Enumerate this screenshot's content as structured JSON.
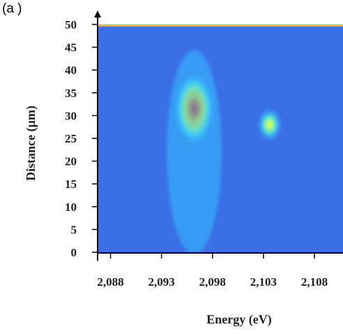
{
  "panel_label": "(a )",
  "chart_data": {
    "type": "heatmap",
    "xlabel": "Energy (eV)",
    "ylabel": "Distance (µm)",
    "xlim": [
      2.0868,
      2.1108
    ],
    "ylim": [
      0,
      50
    ],
    "x_ticks": [
      {
        "value": 2.088,
        "label": "2,088"
      },
      {
        "value": 2.093,
        "label": "2,093"
      },
      {
        "value": 2.098,
        "label": "2,098"
      },
      {
        "value": 2.103,
        "label": "2,103"
      },
      {
        "value": 2.108,
        "label": "2,108"
      }
    ],
    "y_ticks": [
      {
        "value": 0,
        "label": "0"
      },
      {
        "value": 5,
        "label": "5"
      },
      {
        "value": 10,
        "label": "10"
      },
      {
        "value": 15,
        "label": "15"
      },
      {
        "value": 20,
        "label": "20"
      },
      {
        "value": 25,
        "label": "25"
      },
      {
        "value": 30,
        "label": "30"
      },
      {
        "value": 35,
        "label": "35"
      },
      {
        "value": 40,
        "label": "40"
      },
      {
        "value": 45,
        "label": "45"
      },
      {
        "value": 50,
        "label": "50"
      }
    ],
    "background_color": "#3a6fe6",
    "top_band_color": "#f5b400",
    "colormap": [
      "#3a6fe6",
      "#36c0ff",
      "#5ff2c2",
      "#d8ff3a",
      "#ffd400",
      "#ff5a00",
      "#e01010"
    ],
    "hotspots": [
      {
        "x": 2.0962,
        "y": 31.5,
        "sx": 0.0006,
        "sy": 4.5,
        "intensity": 1.0
      },
      {
        "x": 2.1036,
        "y": 28.0,
        "sx": 0.00035,
        "sy": 2.0,
        "intensity": 0.55
      },
      {
        "x": 2.0962,
        "y": 22.0,
        "sx": 0.0009,
        "sy": 14.0,
        "intensity": 0.22
      }
    ]
  }
}
